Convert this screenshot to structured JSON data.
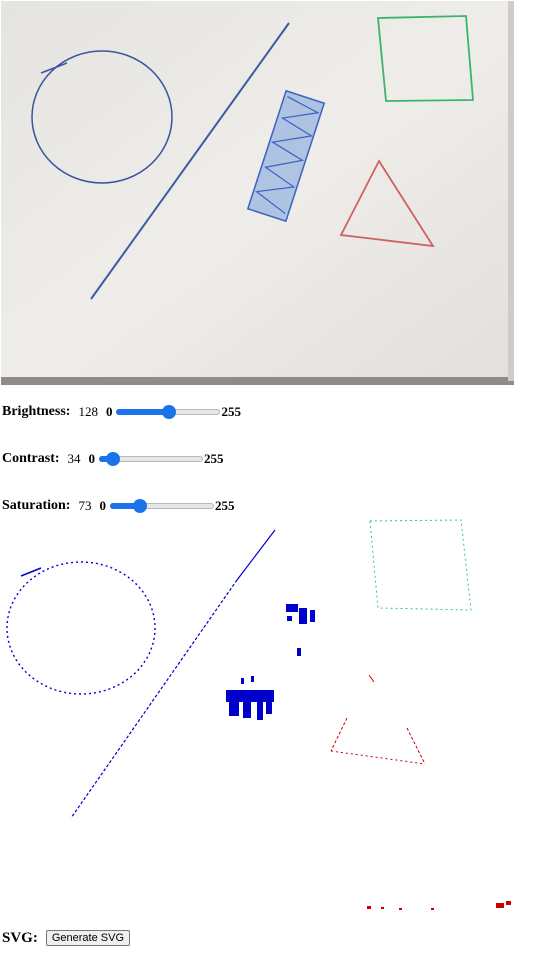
{
  "controls": [
    {
      "label": "Brightness:",
      "value": "128",
      "min": "0",
      "max": "255",
      "fraction": 0.502
    },
    {
      "label": "Contrast:",
      "value": "34",
      "min": "0",
      "max": "255",
      "fraction": 0.133
    },
    {
      "label": "Saturation:",
      "value": "73",
      "min": "0",
      "max": "255",
      "fraction": 0.286
    }
  ],
  "svg": {
    "label": "SVG:",
    "button_label": "Generate SVG"
  }
}
